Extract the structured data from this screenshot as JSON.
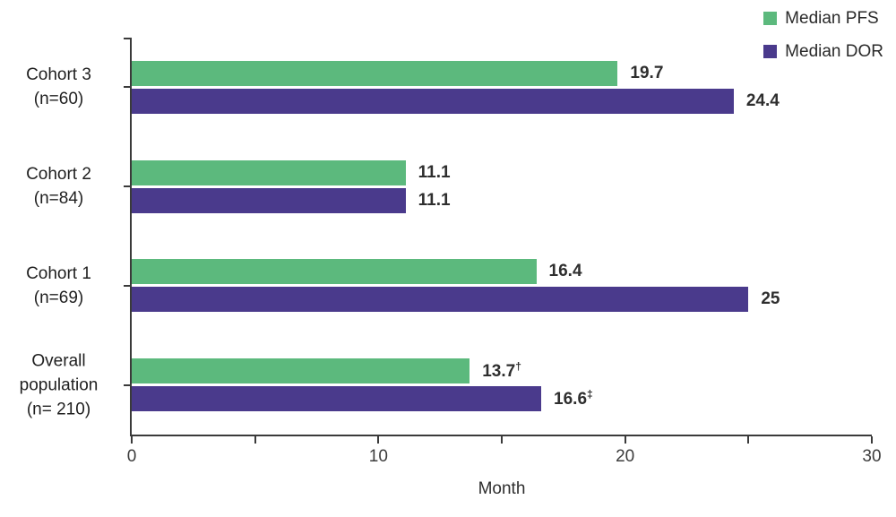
{
  "chart_data": {
    "type": "bar",
    "orientation": "horizontal",
    "title": "",
    "xlabel": "Month",
    "ylabel": "",
    "xlim": [
      0,
      30
    ],
    "x_major_ticks": [
      0,
      10,
      20,
      30
    ],
    "x_minor_ticks": [
      5,
      15,
      25
    ],
    "grid": false,
    "legend_position": "top-right",
    "categories": [
      {
        "label": "Cohort 3\n(n=60)"
      },
      {
        "label": "Cohort 2\n(n=84)"
      },
      {
        "label": "Cohort 1\n(n=69)"
      },
      {
        "label": "Overall\npopulation\n(n= 210)"
      }
    ],
    "series": [
      {
        "name": "Median PFS",
        "color": "#5cb97d",
        "values": [
          19.7,
          11.1,
          16.4,
          13.7
        ],
        "value_labels": [
          "19.7",
          "11.1",
          "16.4",
          "13.7"
        ],
        "value_sups": [
          "",
          "",
          "",
          "†"
        ]
      },
      {
        "name": "Median DOR",
        "color": "#4a3a8c",
        "values": [
          24.4,
          11.1,
          25,
          16.6
        ],
        "value_labels": [
          "24.4",
          "11.1",
          "25",
          "16.6"
        ],
        "value_sups": [
          "",
          "",
          "",
          "‡"
        ]
      }
    ],
    "colors": {
      "axis": "#3a3a3a",
      "value_label": "#2e2e2e",
      "category_label": "#1f1f1f",
      "tick_label": "#3d3d3d"
    }
  }
}
